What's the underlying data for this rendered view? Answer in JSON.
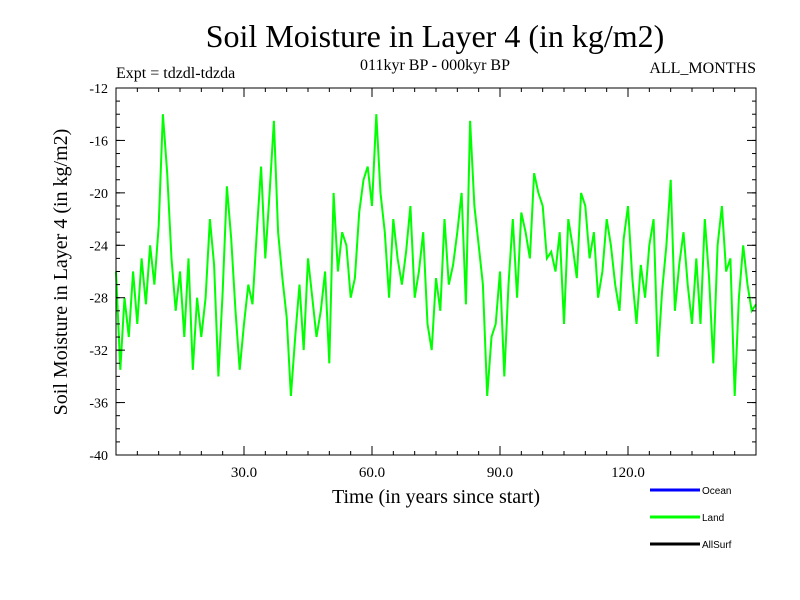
{
  "chart_data": {
    "type": "line",
    "title": "Soil Moisture in Layer 4 (in kg/m2)",
    "subtitle_left": "Expt = tdzdl-tdzda",
    "subtitle_center": "011kyr BP - 000kyr BP",
    "subtitle_right": "ALL_MONTHS",
    "xlabel": "Time (in years since start)",
    "ylabel": "Soil Moisture in Layer 4 (in kg/m2)",
    "xlim": [
      0,
      150
    ],
    "ylim": [
      -40,
      -12
    ],
    "x_ticks": [
      30,
      60,
      90,
      120
    ],
    "x_tick_labels": [
      "30.0",
      "60.0",
      "90.0",
      "120.0"
    ],
    "y_ticks": [
      -12,
      -16,
      -20,
      -24,
      -28,
      -32,
      -36,
      -40
    ],
    "y_tick_labels": [
      "-12",
      "-16",
      "-20",
      "-24",
      "-28",
      "-32",
      "-36",
      "-40"
    ],
    "legend": [
      {
        "name": "Ocean",
        "color": "#0000ff"
      },
      {
        "name": "Land",
        "color": "#00ff00"
      },
      {
        "name": "AllSurf",
        "color": "#000000"
      }
    ],
    "series": [
      {
        "name": "Land",
        "color": "#00ff00",
        "x": [
          0,
          1,
          2,
          3,
          4,
          5,
          6,
          7,
          8,
          9,
          10,
          11,
          12,
          13,
          14,
          15,
          16,
          17,
          18,
          19,
          20,
          21,
          22,
          23,
          24,
          25,
          26,
          27,
          28,
          29,
          30,
          31,
          32,
          33,
          34,
          35,
          36,
          37,
          38,
          39,
          40,
          41,
          42,
          43,
          44,
          45,
          46,
          47,
          48,
          49,
          50,
          51,
          52,
          53,
          54,
          55,
          56,
          57,
          58,
          59,
          60,
          61,
          62,
          63,
          64,
          65,
          66,
          67,
          68,
          69,
          70,
          71,
          72,
          73,
          74,
          75,
          76,
          77,
          78,
          79,
          80,
          81,
          82,
          83,
          84,
          85,
          86,
          87,
          88,
          89,
          90,
          91,
          92,
          93,
          94,
          95,
          96,
          97,
          98,
          99,
          100,
          101,
          102,
          103,
          104,
          105,
          106,
          107,
          108,
          109,
          110,
          111,
          112,
          113,
          114,
          115,
          116,
          117,
          118,
          119,
          120,
          121,
          122,
          123,
          124,
          125,
          126,
          127,
          128,
          129,
          130,
          131,
          132,
          133,
          134,
          135,
          136,
          137,
          138,
          139,
          140,
          141,
          142,
          143,
          144,
          145,
          146,
          147,
          148,
          149,
          150
        ],
        "values": [
          -26,
          -33.5,
          -28,
          -31,
          -26,
          -30,
          -25,
          -28.5,
          -24,
          -27,
          -22.5,
          -14,
          -18.5,
          -25,
          -29,
          -26,
          -31,
          -25,
          -33.5,
          -28,
          -31,
          -28,
          -22,
          -25.5,
          -34,
          -27.5,
          -19.5,
          -23.5,
          -29,
          -33.5,
          -30,
          -27,
          -28.5,
          -23,
          -18,
          -25,
          -20,
          -14.5,
          -23,
          -26.5,
          -29.5,
          -35.5,
          -31,
          -27,
          -32,
          -25,
          -28,
          -31,
          -29,
          -26,
          -33,
          -20,
          -26,
          -23,
          -24,
          -28,
          -26.5,
          -21.5,
          -19,
          -18,
          -21,
          -14,
          -20,
          -23,
          -28,
          -22,
          -25,
          -27,
          -24.5,
          -21,
          -28,
          -26,
          -23,
          -30,
          -32,
          -26.5,
          -29,
          -22,
          -27,
          -25.5,
          -23,
          -20,
          -28.5,
          -14.5,
          -21,
          -24,
          -27,
          -35.5,
          -31,
          -30,
          -26,
          -34,
          -27,
          -22,
          -28,
          -21.5,
          -23,
          -25,
          -18.5,
          -20,
          -21,
          -25,
          -24.5,
          -26,
          -23,
          -30,
          -22,
          -24,
          -26.5,
          -20,
          -21,
          -25,
          -23,
          -28,
          -26,
          -22,
          -24,
          -27,
          -29,
          -23.5,
          -21,
          -26.5,
          -30,
          -25.5,
          -28,
          -24,
          -22,
          -32.5,
          -27.5,
          -24,
          -19,
          -29,
          -25.5,
          -23,
          -27,
          -30,
          -25,
          -30,
          -22,
          -26.5,
          -33,
          -24,
          -21,
          -26,
          -25,
          -35.5,
          -28,
          -24,
          -27,
          -29,
          -28.5
        ]
      }
    ]
  }
}
